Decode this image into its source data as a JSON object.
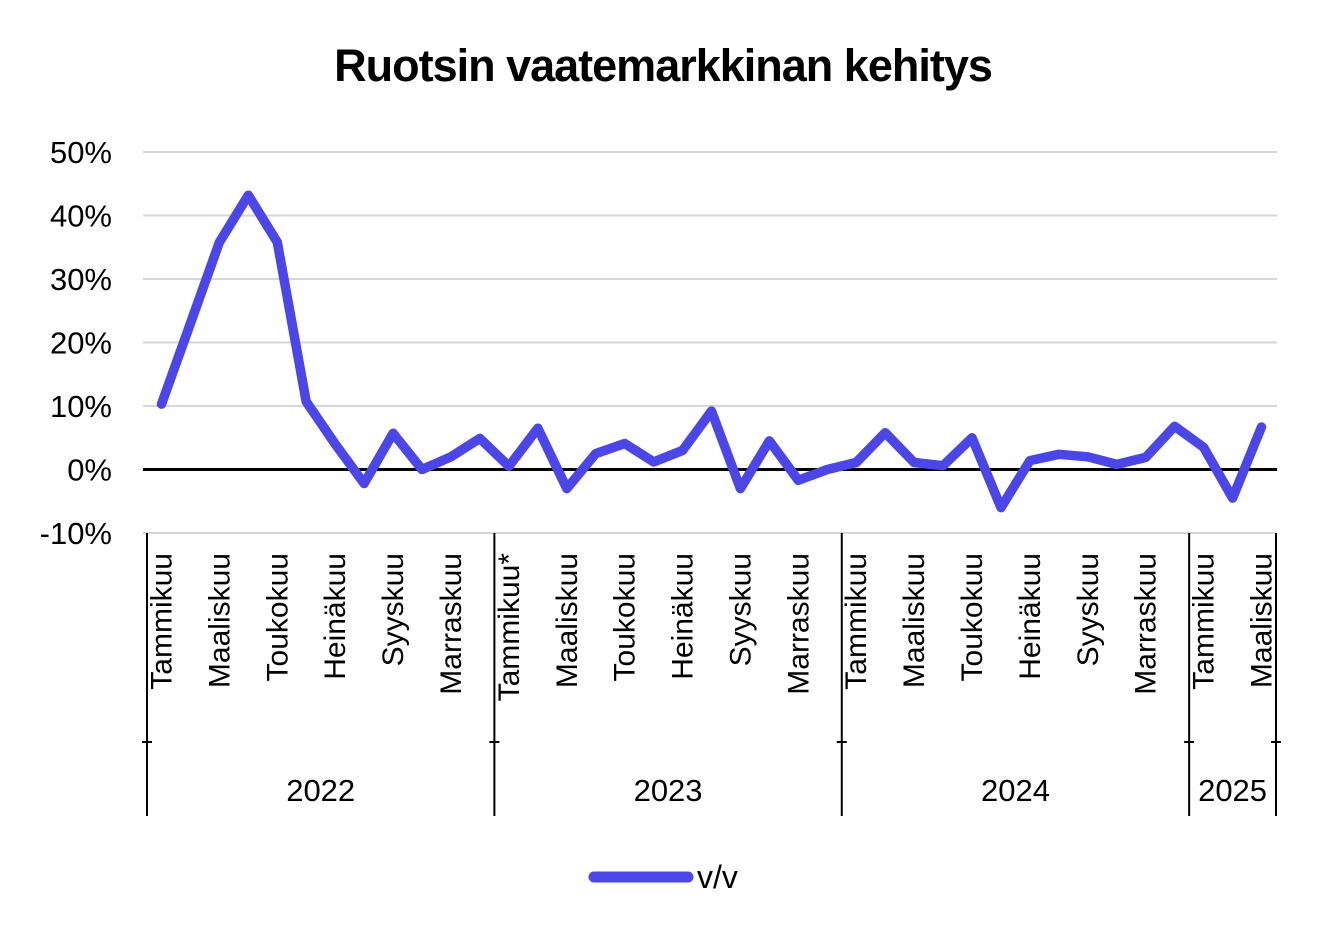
{
  "chart_data": {
    "type": "line",
    "title": "Ruotsin vaatemarkkinan kehitys",
    "legend_position": "bottom",
    "grid": true,
    "ylim": [
      -10,
      50
    ],
    "y_tick_labels": [
      "50%",
      "40%",
      "30%",
      "20%",
      "10%",
      "0%",
      "-10%"
    ],
    "y_tick_values": [
      50,
      40,
      30,
      20,
      10,
      0,
      -10
    ],
    "x_groups": [
      {
        "year": "2022",
        "months": 12,
        "tick_month_offsets": [
          0,
          2,
          4,
          6,
          8,
          10
        ],
        "tick_labels": [
          "Tammikuu",
          "Maaliskuu",
          "Toukokuu",
          "Heinäkuu",
          "Syyskuu",
          "Marraskuu"
        ]
      },
      {
        "year": "2023",
        "months": 12,
        "tick_month_offsets": [
          0,
          2,
          4,
          6,
          8,
          10
        ],
        "tick_labels": [
          "Tammikuu*",
          "Maaliskuu",
          "Toukokuu",
          "Heinäkuu",
          "Syyskuu",
          "Marraskuu"
        ]
      },
      {
        "year": "2024",
        "months": 12,
        "tick_month_offsets": [
          0,
          2,
          4,
          6,
          8,
          10
        ],
        "tick_labels": [
          "Tammikuu",
          "Maaliskuu",
          "Toukokuu",
          "Heinäkuu",
          "Syyskuu",
          "Marraskuu"
        ]
      },
      {
        "year": "2025",
        "months": 3,
        "tick_month_offsets": [
          0,
          2
        ],
        "tick_labels": [
          "Tammikuu",
          "Maaliskuu"
        ]
      }
    ],
    "series": [
      {
        "name": "v/v",
        "color": "#4A46E8",
        "values": [
          10.3,
          23.0,
          35.8,
          43.2,
          35.8,
          10.7,
          4.0,
          -2.2,
          5.7,
          0.0,
          2.0,
          4.9,
          0.5,
          6.5,
          -3.0,
          2.5,
          4.1,
          1.2,
          3.0,
          9.2,
          -3.0,
          4.5,
          -1.7,
          0.0,
          1.1,
          5.8,
          1.1,
          0.6,
          5.0,
          -6.0,
          1.4,
          2.4,
          2.0,
          0.8,
          1.9,
          6.8,
          3.5,
          -4.5,
          6.7
        ]
      }
    ],
    "colors": {
      "line": "#4A46E8",
      "gridline": "#D6D6D6",
      "zero_axis": "#000000",
      "separator": "#000000",
      "text": "#000000"
    }
  }
}
